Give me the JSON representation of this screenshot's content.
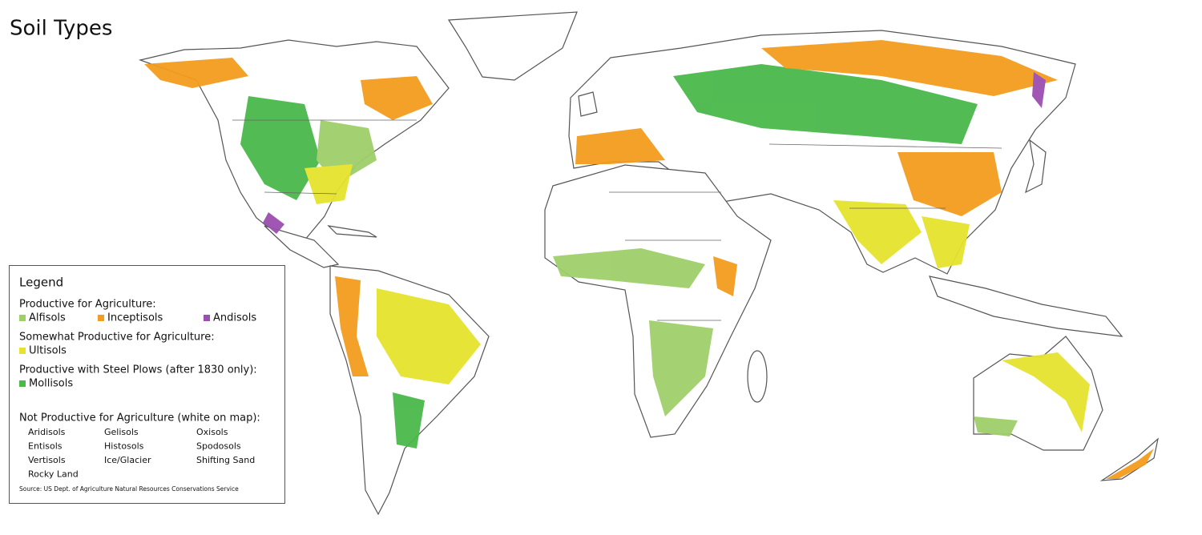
{
  "title": "Soil Types",
  "legend": {
    "title": "Legend",
    "groups": [
      {
        "heading": "Productive for Agriculture:",
        "items": [
          {
            "label": "Alfisols",
            "color": "#9fcf6a"
          },
          {
            "label": "Inceptisols",
            "color": "#f39c1e"
          },
          {
            "label": "Andisols",
            "color": "#9b4fb0"
          }
        ]
      },
      {
        "heading": "Somewhat Productive for Agriculture:",
        "items": [
          {
            "label": "Ultisols",
            "color": "#e6e32e"
          }
        ]
      },
      {
        "heading": "Productive with Steel Plows (after 1830 only):",
        "items": [
          {
            "label": "Mollisols",
            "color": "#4ab84a"
          }
        ]
      }
    ],
    "not_productive": {
      "heading": "Not Productive for Agriculture (white on map):",
      "items": [
        "Aridisols",
        "Gelisols",
        "Oxisols",
        "Entisols",
        "Histosols",
        "Spodosols",
        "Vertisols",
        "Ice/Glacier",
        "Shifting Sand",
        "Rocky Land"
      ]
    }
  },
  "source": "Source: US Dept. of Agriculture Natural Resources Conservations Service"
}
